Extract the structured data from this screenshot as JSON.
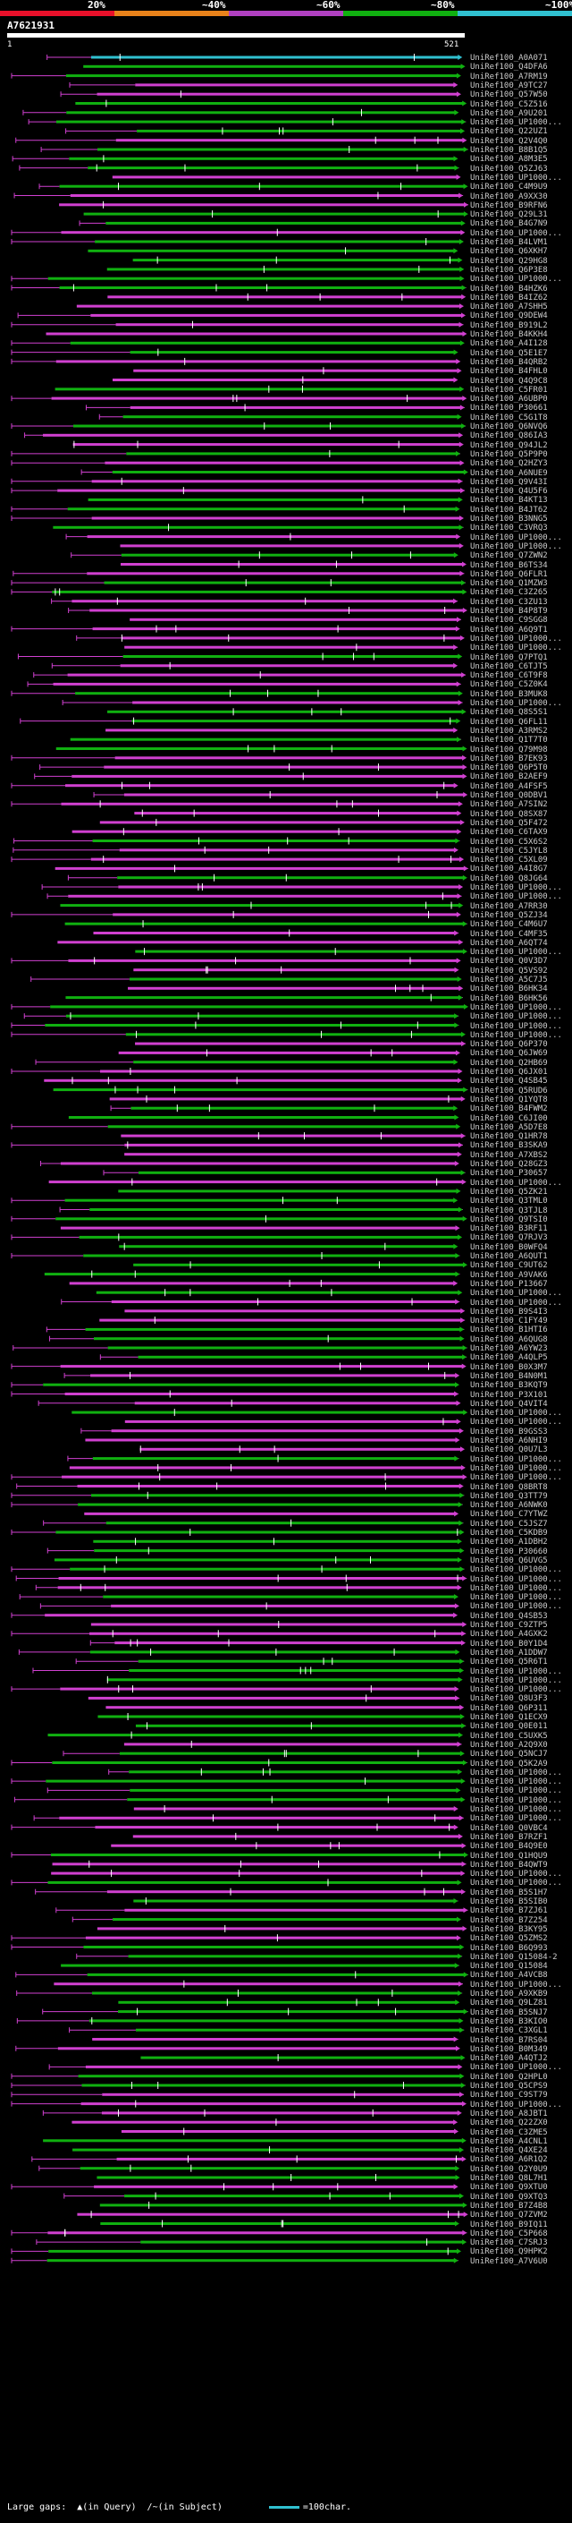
{
  "query": {
    "id": "A7621931",
    "start": "1",
    "end": "521"
  },
  "scale": [
    {
      "label": "20%",
      "color": "#e8102a"
    },
    {
      "label": "~40%",
      "color": "#e8821a"
    },
    {
      "label": "~60%",
      "color": "#b040c0"
    },
    {
      "label": "~80%",
      "color": "#10b010"
    },
    {
      "label": "~100%",
      "color": "#30c0d0"
    }
  ],
  "colors": {
    "green": "#10b010",
    "magenta": "#d040d0",
    "cyan": "#30c0d0",
    "white": "#ffffff"
  },
  "hit_names": [
    "UniRef100_A0A071",
    "UniRef100_Q4DFA6",
    "UniRef100_A7RM19",
    "UniRef100_A9TC27",
    "UniRef100_Q57W50",
    "UniRef100_C5Z516",
    "UniRef100_A9U201",
    "UniRef100_UP1000...",
    "UniRef100_Q22UZ1",
    "UniRef100_Q2V4Q0",
    "UniRef100_B8B1Q5",
    "UniRef100_A8M3E5",
    "UniRef100_Q5ZJ63",
    "UniRef100_UP1000...",
    "UniRef100_C4M9U9",
    "UniRef100_A9XX30",
    "UniRef100_B9RFN6",
    "UniRef100_Q29L31",
    "UniRef100_B4G7N9",
    "UniRef100_UP1000...",
    "UniRef100_B4LVM1",
    "UniRef100_Q6XKH7",
    "UniRef100_Q29HG8",
    "UniRef100_Q6P3E8",
    "UniRef100_UP1000...",
    "UniRef100_B4HZK6",
    "UniRef100_B4IZ62",
    "UniRef100_A7SHH5",
    "UniRef100_Q9DEW4",
    "UniRef100_B919L2",
    "UniRef100_B4KKH4",
    "UniRef100_A4I128",
    "UniRef100_Q5E1E7",
    "UniRef100_B4QRB2",
    "UniRef100_B4FHL0",
    "UniRef100_Q4Q9C8",
    "UniRef100_C5FR01",
    "UniRef100_A6UBP0",
    "UniRef100_P30661",
    "UniRef100_C5G1T8",
    "UniRef100_Q6NVQ6",
    "UniRef100_Q86IA3",
    "UniRef100_Q94JL2",
    "UniRef100_Q5P9P0",
    "UniRef100_Q2HZY3",
    "UniRef100_A6NUE9",
    "UniRef100_Q9V43I",
    "UniRef100_Q4U5F6",
    "UniRef100_B4KT13",
    "UniRef100_B4JT62",
    "UniRef100_B3NNG5",
    "UniRef100_C3VRQ3",
    "UniRef100_UP1000...",
    "UniRef100_UP1000...",
    "UniRef100_Q7ZWN2",
    "UniRef100_B6TS34",
    "UniRef100_Q6FLR1",
    "UniRef100_Q1MZW3",
    "UniRef100_C3Z265",
    "UniRef100_C3ZU13",
    "UniRef100_B4P8T9",
    "UniRef100_C9SGG8",
    "UniRef100_A6Q9T1",
    "UniRef100_UP1000...",
    "UniRef100_UP1000...",
    "UniRef100_Q7PTQ1",
    "UniRef100_C6TJT5",
    "UniRef100_C6T9F8",
    "UniRef100_C5Z0K4",
    "UniRef100_B3MUK8",
    "UniRef100_UP1000...",
    "UniRef100_Q8S5S1",
    "UniRef100_Q6FL11",
    "UniRef100_A3RMS2",
    "UniRef100_Q1T7T0",
    "UniRef100_Q79M98",
    "UniRef100_B7EK93",
    "UniRef100_Q6P5T0",
    "UniRef100_B2AEF9",
    "UniRef100_A4FSF5",
    "UniRef100_Q0DBV1",
    "UniRef100_A7SIN2",
    "UniRef100_Q8SX87",
    "UniRef100_Q5F472",
    "UniRef100_C6TAX9",
    "UniRef100_C5X6S2",
    "UniRef100_C5JYL8",
    "UniRef100_C5XL09",
    "UniRef100_A4I8G7",
    "UniRef100_Q8JG64",
    "UniRef100_UP1000...",
    "UniRef100_UP1000...",
    "UniRef100_A7RR30",
    "UniRef100_Q5ZJ34",
    "UniRef100_C4M6U7",
    "UniRef100_C4MF35",
    "UniRef100_A6QT74",
    "UniRef100_UP1000...",
    "UniRef100_Q0V3D7",
    "UniRef100_Q5VS92",
    "UniRef100_A5C7J5",
    "UniRef100_B6HK34",
    "UniRef100_B6HK56",
    "UniRef100_UP1000...",
    "UniRef100_UP1000...",
    "UniRef100_UP1000...",
    "UniRef100_UP1000...",
    "UniRef100_Q6P370",
    "UniRef100_Q6JW69",
    "UniRef100_Q2HB69",
    "UniRef100_Q6JX01",
    "UniRef100_Q4SB45",
    "UniRef100_Q5RUD6",
    "UniRef100_Q1YQT8",
    "UniRef100_B4FWM2",
    "UniRef100_C6JI00",
    "UniRef100_A5D7E8",
    "UniRef100_Q1HR78",
    "UniRef100_B3SKA9",
    "UniRef100_A7XBS2",
    "UniRef100_Q28GZ3",
    "UniRef100_P30657",
    "UniRef100_UP1000...",
    "UniRef100_Q5ZK21",
    "UniRef100_Q3TML0",
    "UniRef100_Q3TJL8",
    "UniRef100_Q9TSI0",
    "UniRef100_B3RF11",
    "UniRef100_Q7RJV3",
    "UniRef100_B0WFQ4",
    "UniRef100_A6QUT1",
    "UniRef100_C9UT62",
    "UniRef100_A9VAK6",
    "UniRef100_P13667",
    "UniRef100_UP1000...",
    "UniRef100_UP1000...",
    "UniRef100_B9S4I3",
    "UniRef100_C1FY49",
    "UniRef100_B1HTI6",
    "UniRef100_A6QUG8",
    "UniRef100_A6YW23",
    "UniRef100_A4QLP5",
    "UniRef100_B0X3M7",
    "UniRef100_B4N0M1",
    "UniRef100_B3KQT9",
    "UniRef100_P3X101",
    "UniRef100_Q4VIT4",
    "UniRef100_UP1000...",
    "UniRef100_UP1000...",
    "UniRef100_B9GSS3",
    "UniRef100_A6NHI9",
    "UniRef100_Q0U7L3",
    "UniRef100_UP1000...",
    "UniRef100_UP1000...",
    "UniRef100_UP1000...",
    "UniRef100_Q8BRT8",
    "UniRef100_Q3TT79",
    "UniRef100_A6NWK0",
    "UniRef100_C7YTWZ",
    "UniRef100_C5JSZ7",
    "UniRef100_C5KDB9",
    "UniRef100_A1DBH2",
    "UniRef100_P30660",
    "UniRef100_Q6UVG5",
    "UniRef100_UP1000...",
    "UniRef100_UP1000...",
    "UniRef100_UP1000...",
    "UniRef100_UP1000...",
    "UniRef100_UP1000...",
    "UniRef100_Q4SB53",
    "UniRef100_C9ZTP5",
    "UniRef100_A4GXK2",
    "UniRef100_B0Y1D4",
    "UniRef100_A1DDW7",
    "UniRef100_Q5R6T1",
    "UniRef100_UP1000...",
    "UniRef100_UP1000...",
    "UniRef100_UP1000...",
    "UniRef100_Q8U3F3",
    "UniRef100_Q6P311",
    "UniRef100_Q1ECX9",
    "UniRef100_Q0E011",
    "UniRef100_C5UXK5",
    "UniRef100_A2Q9X0",
    "UniRef100_Q5NCJ7",
    "UniRef100_Q5K2A9",
    "UniRef100_UP1000...",
    "UniRef100_UP1000...",
    "UniRef100_UP1000...",
    "UniRef100_UP1000...",
    "UniRef100_UP1000...",
    "UniRef100_UP1000...",
    "UniRef100_Q0VBC4",
    "UniRef100_B7RZF1",
    "UniRef100_B4Q9E0",
    "UniRef100_Q1HQU9",
    "UniRef100_B4QWT9",
    "UniRef100_UP1000...",
    "UniRef100_UP1000...",
    "UniRef100_B5S1H7",
    "UniRef100_B5SIB0",
    "UniRef100_B7ZJ61",
    "UniRef100_B7Z254",
    "UniRef100_B3KY95",
    "UniRef100_Q5ZMS2",
    "UniRef100_B6Q993",
    "UniRef100_Q15084-2",
    "UniRef100_Q15084",
    "UniRef100_A4VCB8",
    "UniRef100_UP1000...",
    "UniRef100_A9XKB9",
    "UniRef100_Q9LZ81",
    "UniRef100_B5SNJ7",
    "UniRef100_B3KIO0",
    "UniRef100_C3XGL1",
    "UniRef100_B7RS04",
    "UniRef100_B0M349",
    "UniRef100_A4QTJ2",
    "UniRef100_UP1000...",
    "UniRef100_Q2HPL0",
    "UniRef100_Q5CPS9",
    "UniRef100_C9ST79",
    "UniRef100_UP1000...",
    "UniRef100_A8JBT1",
    "UniRef100_Q22ZX0",
    "UniRef100_C3ZME5",
    "UniRef100_A4CNL1",
    "UniRef100_Q4XE24",
    "UniRef100_A6R1Q2",
    "UniRef100_Q2Y0U9",
    "UniRef100_Q8L7H1",
    "UniRef100_Q9XTU0",
    "UniRef100_Q9XTQ3",
    "UniRef100_B7Z4B8",
    "UniRef100_Q7ZVM2",
    "UniRef100_B9IQ11",
    "UniRef100_C5P668",
    "UniRef100_C7SRJ3",
    "UniRef100_Q9HPK2",
    "UniRef100_A7V6U0"
  ],
  "legend": {
    "large_gaps": "Large gaps:",
    "in_query": "(in Query)",
    "in_subject": "(in Subject)",
    "scale_unit": "=100char."
  }
}
